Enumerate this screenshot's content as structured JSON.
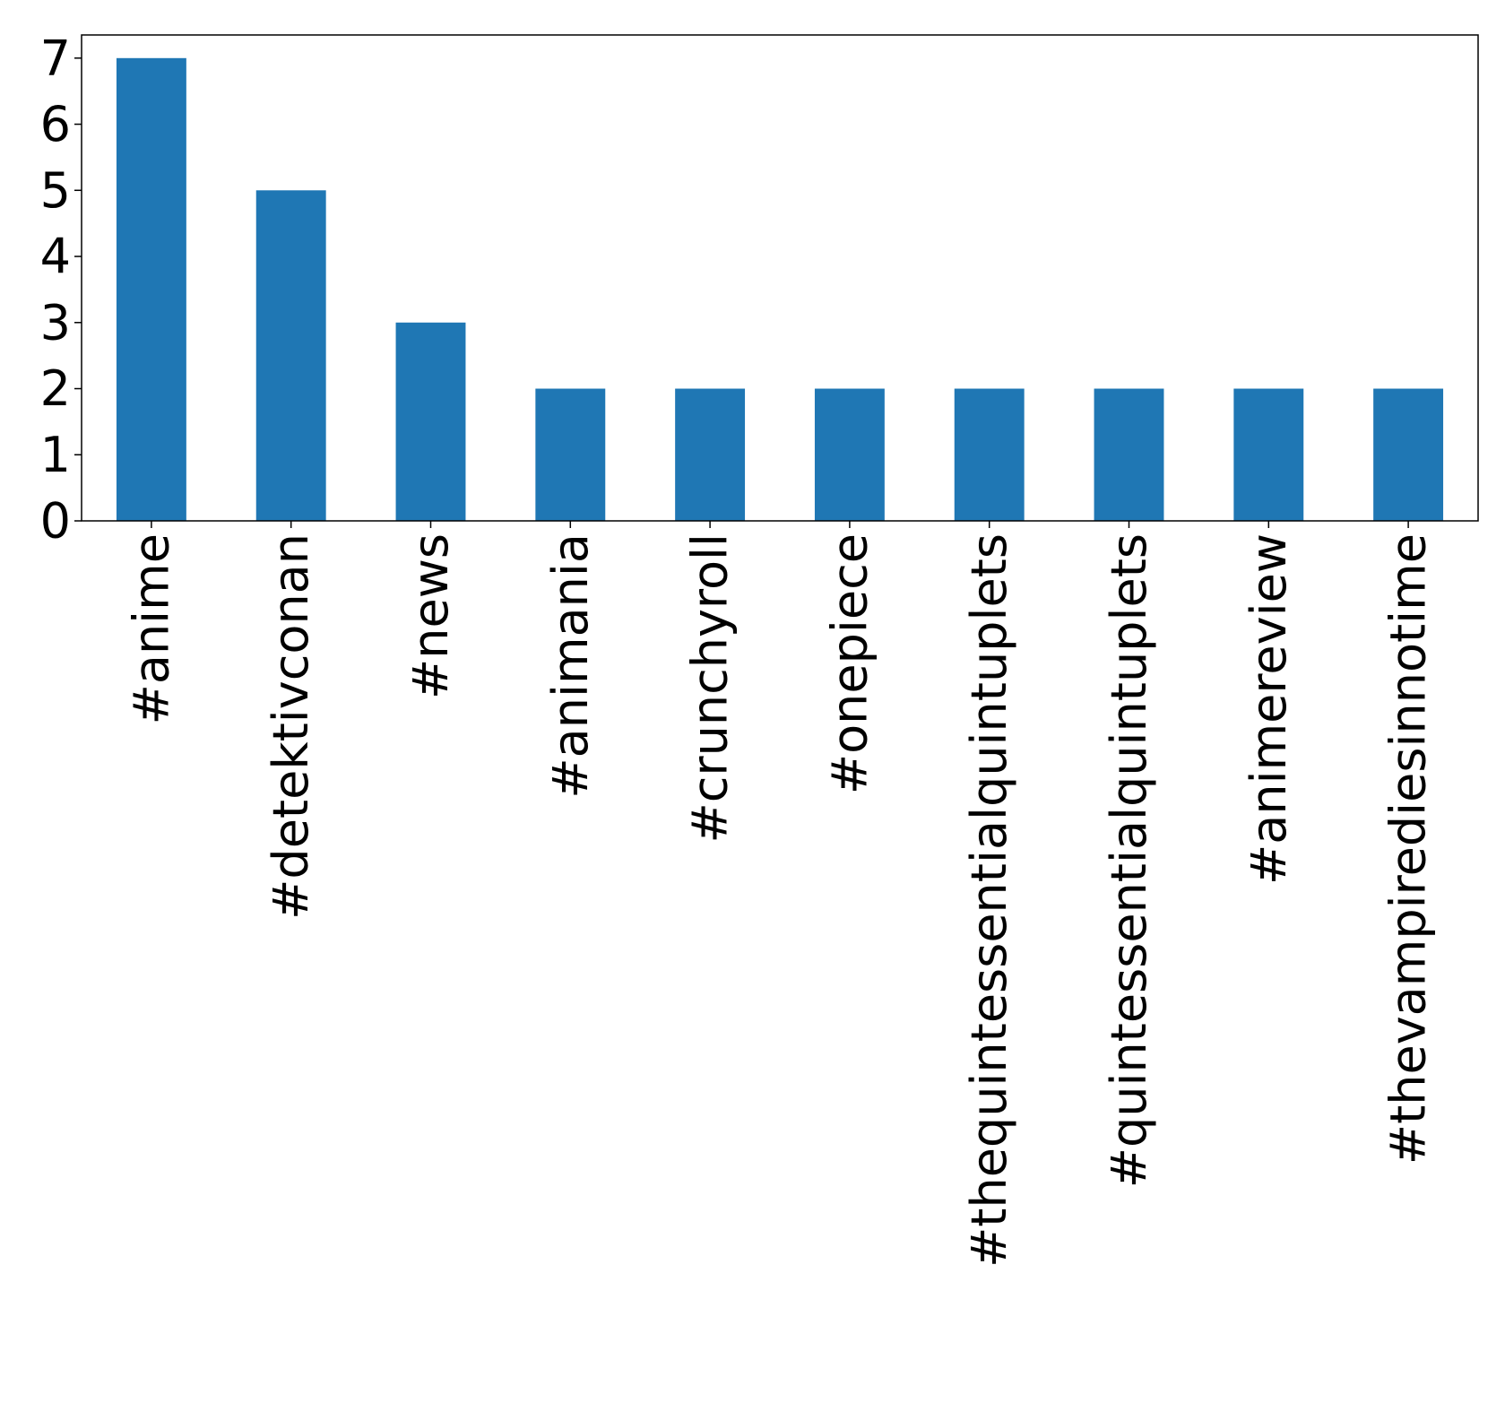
{
  "chart_data": {
    "type": "bar",
    "categories": [
      "#anime",
      "#detektivconan",
      "#news",
      "#animania",
      "#crunchyroll",
      "#onepiece",
      "#thequintessentialquintuplets",
      "#quintessentialquintuplets",
      "#animereview",
      "#thevampirediesinnotime"
    ],
    "values": [
      7,
      5,
      3,
      2,
      2,
      2,
      2,
      2,
      2,
      2
    ],
    "title": "",
    "xlabel": "",
    "ylabel": "",
    "ylim": [
      0,
      7.35
    ],
    "yticks": [
      "0",
      "1",
      "2",
      "3",
      "4",
      "5",
      "6",
      "7"
    ],
    "bar_color": "#1f77b4",
    "grid": false,
    "legend": "none"
  }
}
